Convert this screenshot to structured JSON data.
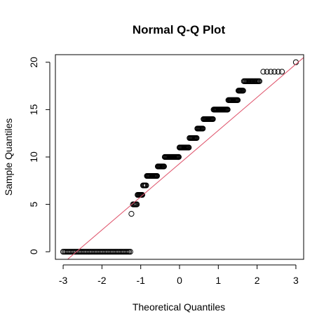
{
  "chart_data": {
    "type": "scatter",
    "title": "Normal Q-Q Plot",
    "xlabel": "Theoretical Quantiles",
    "ylabel": "Sample Quantiles",
    "xlim": [
      -3.2,
      3.2
    ],
    "ylim": [
      -0.8,
      20.8
    ],
    "xticks": [
      -3,
      -2,
      -1,
      0,
      1,
      2,
      3
    ],
    "yticks": [
      0,
      5,
      10,
      15,
      20
    ],
    "grid": false,
    "point_style": "open-circle",
    "point_color": "#000000",
    "reference_line": {
      "intercept": 9.3,
      "slope": 3.5,
      "color": "#DF536B"
    },
    "groups": [
      {
        "y": 0,
        "x_from": -3.0,
        "x_to": -1.27,
        "n": 55
      },
      {
        "y": 4,
        "x_from": -1.24,
        "x_to": -1.24,
        "n": 1
      },
      {
        "y": 5,
        "x_from": -1.2,
        "x_to": -1.1,
        "n": 6
      },
      {
        "y": 6,
        "x_from": -1.08,
        "x_to": -0.96,
        "n": 8
      },
      {
        "y": 7,
        "x_from": -0.94,
        "x_to": -0.86,
        "n": 5
      },
      {
        "y": 8,
        "x_from": -0.84,
        "x_to": -0.58,
        "n": 16
      },
      {
        "y": 9,
        "x_from": -0.56,
        "x_to": -0.4,
        "n": 10
      },
      {
        "y": 10,
        "x_from": -0.38,
        "x_to": -0.02,
        "n": 22
      },
      {
        "y": 11,
        "x_from": 0.0,
        "x_to": 0.24,
        "n": 15
      },
      {
        "y": 12,
        "x_from": 0.26,
        "x_to": 0.44,
        "n": 11
      },
      {
        "y": 13,
        "x_from": 0.46,
        "x_to": 0.6,
        "n": 9
      },
      {
        "y": 14,
        "x_from": 0.62,
        "x_to": 0.86,
        "n": 15
      },
      {
        "y": 15,
        "x_from": 0.88,
        "x_to": 1.24,
        "n": 22
      },
      {
        "y": 16,
        "x_from": 1.26,
        "x_to": 1.5,
        "n": 15
      },
      {
        "y": 17,
        "x_from": 1.52,
        "x_to": 1.64,
        "n": 8
      },
      {
        "y": 18,
        "x_from": 1.66,
        "x_to": 2.06,
        "n": 18
      },
      {
        "y": 19,
        "x_from": 2.16,
        "x_to": 2.64,
        "n": 6
      },
      {
        "y": 20,
        "x_from": 3.0,
        "x_to": 3.0,
        "n": 1
      }
    ]
  }
}
